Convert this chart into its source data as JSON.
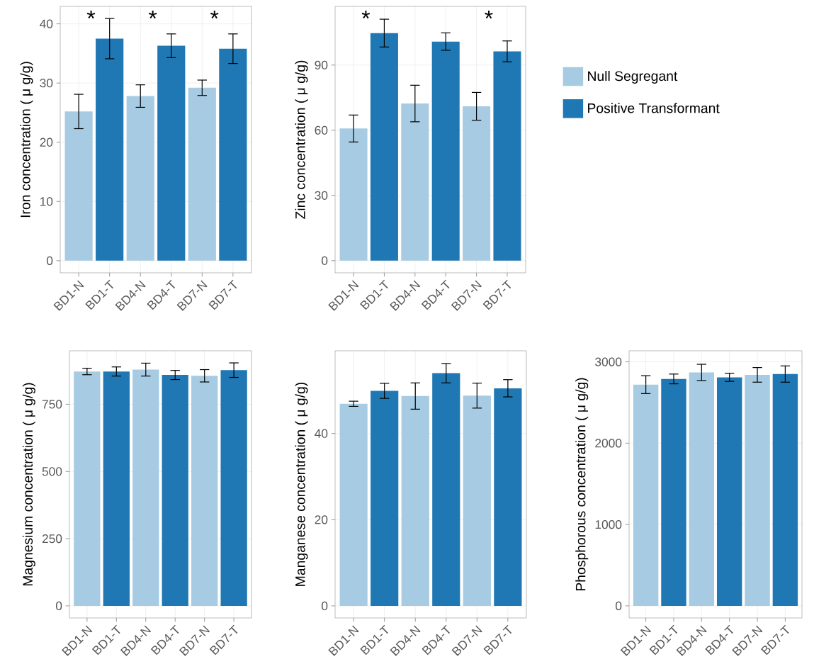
{
  "chart_data": [
    {
      "type": "bar",
      "categories": [
        "BD1-N",
        "BD1-T",
        "BD4-N",
        "BD4-T",
        "BD7-N",
        "BD7-T"
      ],
      "ylabel": "Iron concentration ( μ g/g)",
      "ylim": [
        -2.05,
        42.95
      ],
      "yticks": [
        0,
        10,
        20,
        30,
        40
      ],
      "grid": true,
      "series": [
        {
          "color": "#a6cbe3",
          "values": [
            25.2,
            null,
            27.8,
            null,
            29.2,
            null
          ],
          "errors": [
            2.9,
            null,
            1.9,
            null,
            1.3,
            null
          ]
        },
        {
          "color": "#1f78b4",
          "values": [
            null,
            37.5,
            null,
            36.3,
            null,
            35.8
          ],
          "errors": [
            null,
            3.4,
            null,
            2.0,
            null,
            2.5
          ]
        }
      ],
      "annotations": [
        "*",
        "*",
        "*"
      ]
    },
    {
      "type": "bar",
      "categories": [
        "BD1-N",
        "BD1-T",
        "BD4-N",
        "BD4-T",
        "BD7-N",
        "BD7-T"
      ],
      "ylabel": "Zinc concentration ( μ g/g)",
      "ylim": [
        -5.6,
        117
      ],
      "yticks": [
        0,
        30,
        60,
        90
      ],
      "grid": true,
      "legend": "right",
      "series": [
        {
          "name": "Null Segregant",
          "color": "#a6cbe3",
          "values": [
            60.8,
            null,
            72.3,
            null,
            71.0,
            null
          ],
          "errors": [
            6.2,
            null,
            8.4,
            null,
            6.4,
            null
          ]
        },
        {
          "name": "Positive Transformant",
          "color": "#1f78b4",
          "values": [
            null,
            104.7,
            null,
            100.8,
            null,
            96.3
          ],
          "errors": [
            null,
            6.4,
            null,
            4.0,
            null,
            4.8
          ]
        }
      ],
      "annotations": [
        "*",
        "*"
      ]
    },
    {
      "type": "bar",
      "categories": [
        "BD1-N",
        "BD1-T",
        "BD4-N",
        "BD4-T",
        "BD7-N",
        "BD7-T"
      ],
      "ylabel": "Magnesium concentration ( μ g/g)",
      "ylim": [
        -45,
        949
      ],
      "yticks": [
        0,
        250,
        500,
        750
      ],
      "grid": true,
      "series": [
        {
          "color": "#a6cbe3",
          "values": [
            872,
            null,
            879,
            null,
            856,
            null
          ],
          "errors": [
            12,
            null,
            24,
            null,
            23,
            null
          ]
        },
        {
          "color": "#1f78b4",
          "values": [
            null,
            872,
            null,
            859,
            null,
            877
          ],
          "errors": [
            null,
            17,
            null,
            17,
            null,
            27
          ]
        }
      ]
    },
    {
      "type": "bar",
      "categories": [
        "BD1-N",
        "BD1-T",
        "BD4-N",
        "BD4-T",
        "BD7-N",
        "BD7-T"
      ],
      "ylabel": "Manganese concentration ( μ g/g)",
      "ylim": [
        -2.8,
        59.2
      ],
      "yticks": [
        0,
        20,
        40
      ],
      "grid": true,
      "series": [
        {
          "color": "#a6cbe3",
          "values": [
            46.9,
            null,
            48.7,
            null,
            48.8,
            null
          ],
          "errors": [
            0.6,
            null,
            3.05,
            null,
            2.9,
            null
          ]
        },
        {
          "color": "#1f78b4",
          "values": [
            null,
            49.9,
            null,
            54.0,
            null,
            50.5
          ],
          "errors": [
            null,
            1.75,
            null,
            2.25,
            null,
            2.0
          ]
        }
      ]
    },
    {
      "type": "bar",
      "categories": [
        "BD1-N",
        "BD1-T",
        "BD4-N",
        "BD4-T",
        "BD7-N",
        "BD7-T"
      ],
      "ylabel": "Phosphorous concentration ( μ g/g)",
      "ylim": [
        -149,
        3136
      ],
      "yticks": [
        0,
        1000,
        2000,
        3000
      ],
      "grid": true,
      "series": [
        {
          "color": "#a6cbe3",
          "values": [
            2720,
            null,
            2870,
            null,
            2840,
            null
          ],
          "errors": [
            110,
            null,
            100,
            null,
            90,
            null
          ]
        },
        {
          "color": "#1f78b4",
          "values": [
            null,
            2790,
            null,
            2810,
            null,
            2850
          ],
          "errors": [
            null,
            60,
            null,
            50,
            null,
            100
          ]
        }
      ]
    }
  ]
}
